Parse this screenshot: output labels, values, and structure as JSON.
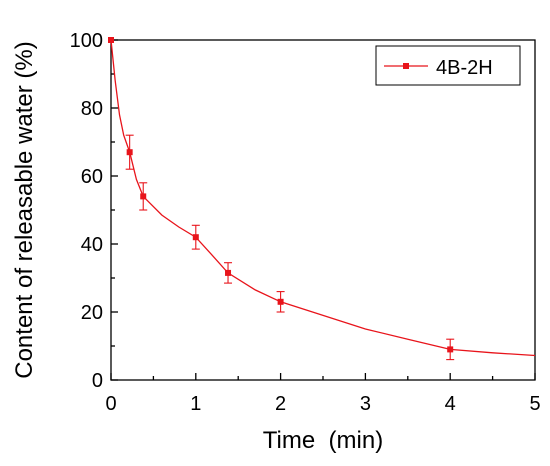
{
  "chart_data": {
    "type": "line",
    "xlabel": "Time  (min)",
    "ylabel": "Content of releasable water (%)",
    "xlim": [
      0,
      5
    ],
    "ylim": [
      0,
      100
    ],
    "xticks": [
      "0",
      "1",
      "2",
      "3",
      "4",
      "5"
    ],
    "yticks": [
      "0",
      "20",
      "40",
      "60",
      "80",
      "100"
    ],
    "grid": false,
    "legend_position": "top-right",
    "series": [
      {
        "name": "4B-2H",
        "color": "#e8141b",
        "marker": "square",
        "points": [
          {
            "x": 0,
            "y": 100,
            "err": 0
          },
          {
            "x": 0.22,
            "y": 67,
            "err": 5
          },
          {
            "x": 0.38,
            "y": 54,
            "err": 4
          },
          {
            "x": 1.0,
            "y": 42,
            "err": 3.5
          },
          {
            "x": 1.38,
            "y": 31.5,
            "err": 3
          },
          {
            "x": 2.0,
            "y": 23,
            "err": 3
          },
          {
            "x": 4.0,
            "y": 9,
            "err": 3
          }
        ],
        "curve": [
          {
            "x": 0,
            "y": 100
          },
          {
            "x": 0.05,
            "y": 88
          },
          {
            "x": 0.1,
            "y": 78
          },
          {
            "x": 0.15,
            "y": 72
          },
          {
            "x": 0.22,
            "y": 67
          },
          {
            "x": 0.3,
            "y": 59
          },
          {
            "x": 0.38,
            "y": 54
          },
          {
            "x": 0.6,
            "y": 48.5
          },
          {
            "x": 0.8,
            "y": 45
          },
          {
            "x": 1.0,
            "y": 42
          },
          {
            "x": 1.2,
            "y": 36.5
          },
          {
            "x": 1.38,
            "y": 31.5
          },
          {
            "x": 1.7,
            "y": 26.5
          },
          {
            "x": 2.0,
            "y": 23
          },
          {
            "x": 2.5,
            "y": 19
          },
          {
            "x": 3.0,
            "y": 15
          },
          {
            "x": 3.5,
            "y": 12
          },
          {
            "x": 4.0,
            "y": 9
          },
          {
            "x": 4.5,
            "y": 8
          },
          {
            "x": 5.0,
            "y": 7.2
          }
        ]
      }
    ]
  }
}
